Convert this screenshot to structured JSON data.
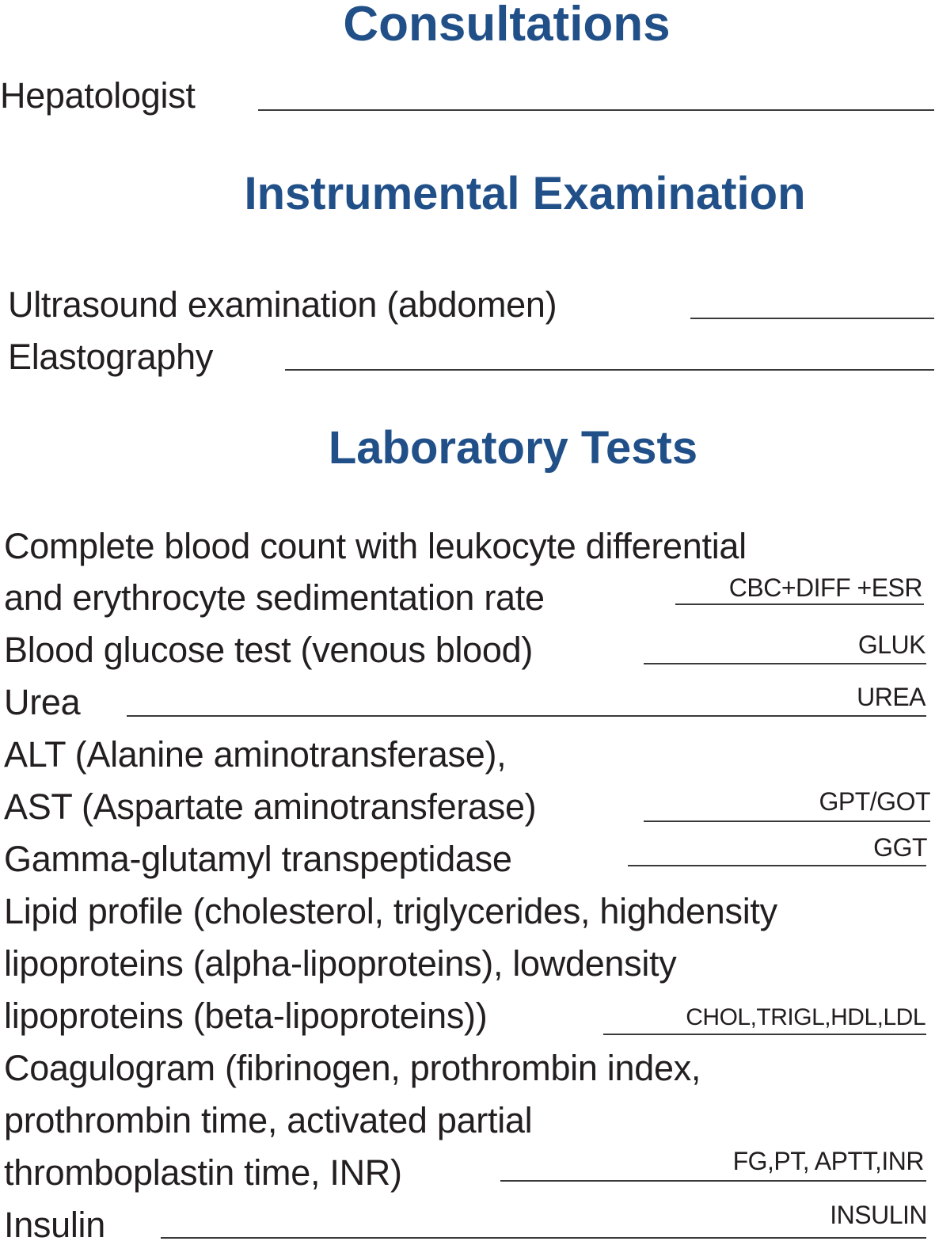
{
  "colors": {
    "heading": "#215089",
    "text": "#231f20"
  },
  "consultations": {
    "heading": "Consultations",
    "items": [
      {
        "label": "Hepatologist"
      }
    ]
  },
  "instrumental": {
    "heading": "Instrumental Examination",
    "items": [
      {
        "label": "Ultrasound examination (abdomen)"
      },
      {
        "label": "Elastography"
      }
    ]
  },
  "laboratory": {
    "heading": "Laboratory Tests",
    "items": [
      {
        "lines": [
          "Complete blood count with leukocyte differential",
          "and erythrocyte sedimentation rate"
        ],
        "code": "CBC+DIFF +ESR"
      },
      {
        "lines": [
          "Blood glucose test (venous blood)"
        ],
        "code": "GLUK"
      },
      {
        "lines": [
          "Urea"
        ],
        "code": "UREA"
      },
      {
        "lines": [
          "ALT (Alanine aminotransferase),",
          "AST (Aspartate aminotransferase)"
        ],
        "code": "GPT/GOT"
      },
      {
        "lines": [
          "Gamma-glutamyl transpeptidase"
        ],
        "code": "GGT"
      },
      {
        "lines": [
          "Lipid profile (cholesterol, triglycerides, highdensity",
          "lipoproteins (alpha-lipoproteins), lowdensity",
          "lipoproteins (beta-lipoproteins))"
        ],
        "code": "CHOL,TRIGL,HDL,LDL"
      },
      {
        "lines": [
          "Coagulogram (fibrinogen, prothrombin index,",
          "prothrombin time, activated partial",
          "thromboplastin time, INR)"
        ],
        "code": "FG,PT, APTT,INR"
      },
      {
        "lines": [
          "Insulin"
        ],
        "code": "INSULIN"
      }
    ]
  }
}
